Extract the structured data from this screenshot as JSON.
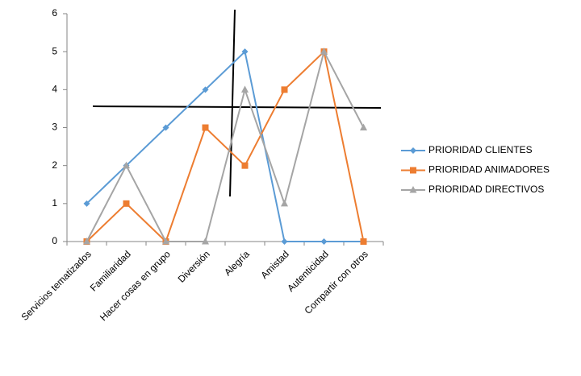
{
  "chart_data": {
    "type": "line",
    "categories": [
      "Servicios tematizados",
      "Familiaridad",
      "Hacer cosas en grupo",
      "Diversión",
      "Alegría",
      "Amistad",
      "Autenticidad",
      "Compartir con otros"
    ],
    "series": [
      {
        "name": "PRIORIDAD CLIENTES",
        "color": "#5b9bd5",
        "marker": "diamond",
        "values": [
          1,
          2,
          3,
          4,
          5,
          0,
          0,
          0
        ]
      },
      {
        "name": "PRIORIDAD ANIMADORES",
        "color": "#ed7d31",
        "marker": "square",
        "values": [
          0,
          1,
          0,
          3,
          2,
          4,
          5,
          0
        ]
      },
      {
        "name": "PRIORIDAD DIRECTIVOS",
        "color": "#a5a5a5",
        "marker": "triangle",
        "values": [
          0,
          2,
          0,
          0,
          4,
          1,
          5,
          3
        ]
      }
    ],
    "ylim": [
      0,
      6
    ],
    "yticks": [
      0,
      1,
      2,
      3,
      4,
      5,
      6
    ],
    "grid": false,
    "legend": "right"
  }
}
